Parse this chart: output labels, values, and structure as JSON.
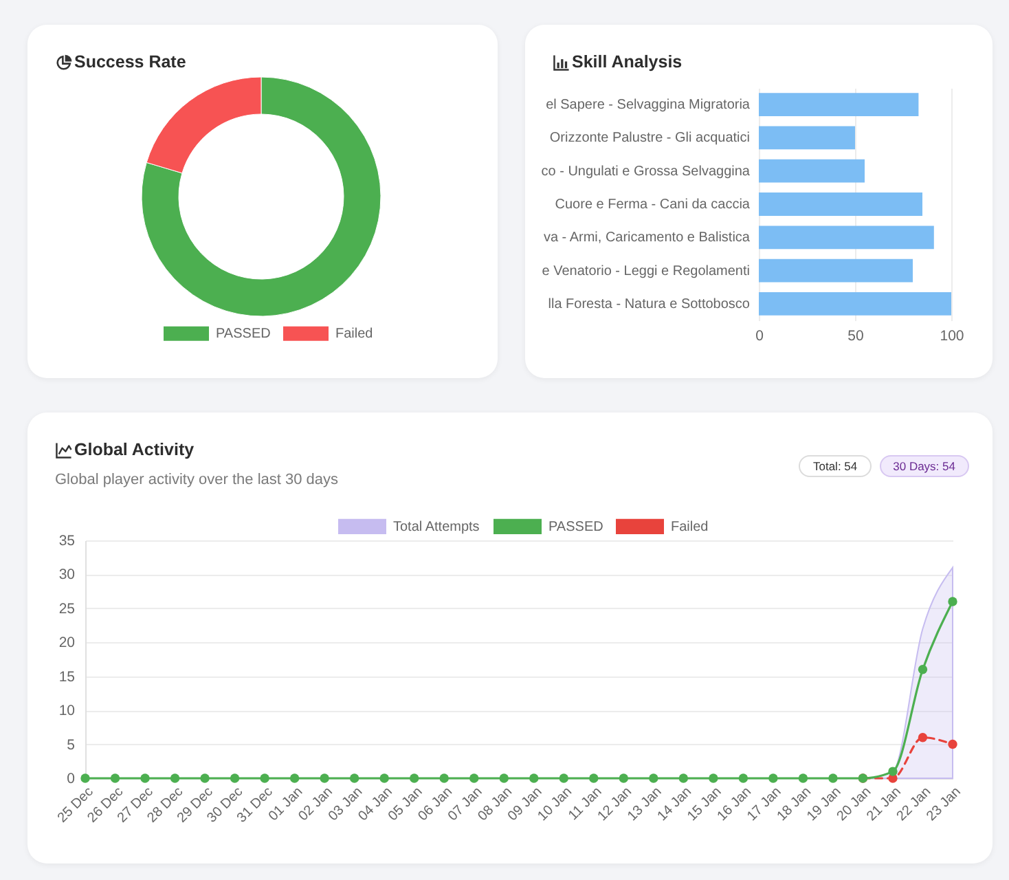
{
  "chart_data": [
    {
      "type": "donut",
      "title": "Success Rate",
      "categories": [
        "PASSED",
        "Failed"
      ],
      "values": [
        79.6,
        20.4
      ],
      "colors": [
        "#4caf50",
        "#f75353"
      ],
      "legend": "bottom"
    },
    {
      "type": "bar",
      "title": "Skill Analysis",
      "orientation": "horizontal",
      "categories": [
        "el Sapere - Selvaggina Migratoria",
        "Orizzonte Palustre - Gli acquatici",
        "co - Ungulati e Grossa Selvaggina",
        "Cuore e Ferma - Cani da caccia",
        "va - Armi, Caricamento e Balistica",
        "e Venatorio - Leggi e Regolamenti",
        "lla Foresta - Natura e Sottobosco"
      ],
      "values": [
        83,
        50,
        55,
        85,
        91,
        80,
        100
      ],
      "color": "#7cbdf4",
      "xlim": [
        0,
        100
      ],
      "xticks": [
        0,
        50,
        100
      ],
      "grid": "x"
    },
    {
      "type": "line",
      "title": "Global Activity",
      "subtitle": "Global player activity over the last 30 days",
      "annotations": [
        "Total: 54",
        "30 Days: 54"
      ],
      "categories": [
        "25 Dec",
        "26 Dec",
        "27 Dec",
        "28 Dec",
        "29 Dec",
        "30 Dec",
        "31 Dec",
        "01 Jan",
        "02 Jan",
        "03 Jan",
        "04 Jan",
        "05 Jan",
        "06 Jan",
        "07 Jan",
        "08 Jan",
        "09 Jan",
        "10 Jan",
        "11 Jan",
        "12 Jan",
        "13 Jan",
        "14 Jan",
        "15 Jan",
        "16 Jan",
        "17 Jan",
        "18 Jan",
        "19 Jan",
        "20 Jan",
        "21 Jan",
        "22 Jan",
        "23 Jan"
      ],
      "series": [
        {
          "name": "Total Attempts",
          "type": "area",
          "color": "#c6bcf0",
          "marker": "none",
          "values": [
            0,
            0,
            0,
            0,
            0,
            0,
            0,
            0,
            0,
            0,
            0,
            0,
            0,
            0,
            0,
            0,
            0,
            0,
            0,
            0,
            0,
            0,
            0,
            0,
            0,
            0,
            0,
            1,
            22,
            31
          ]
        },
        {
          "name": "PASSED",
          "color": "#4caf50",
          "values": [
            0,
            0,
            0,
            0,
            0,
            0,
            0,
            0,
            0,
            0,
            0,
            0,
            0,
            0,
            0,
            0,
            0,
            0,
            0,
            0,
            0,
            0,
            0,
            0,
            0,
            0,
            0,
            1,
            16,
            26
          ]
        },
        {
          "name": "Failed",
          "color": "#e8433c",
          "line_style": "dashed",
          "values": [
            null,
            null,
            null,
            null,
            null,
            null,
            null,
            null,
            null,
            null,
            null,
            null,
            null,
            null,
            null,
            null,
            null,
            null,
            null,
            null,
            null,
            null,
            null,
            null,
            null,
            null,
            0,
            0,
            6,
            5
          ]
        }
      ],
      "ylim": [
        0,
        35
      ],
      "yticks": [
        0,
        5,
        10,
        15,
        20,
        25,
        30,
        35
      ],
      "grid": "y",
      "legend": "top",
      "marker": "circle"
    }
  ]
}
